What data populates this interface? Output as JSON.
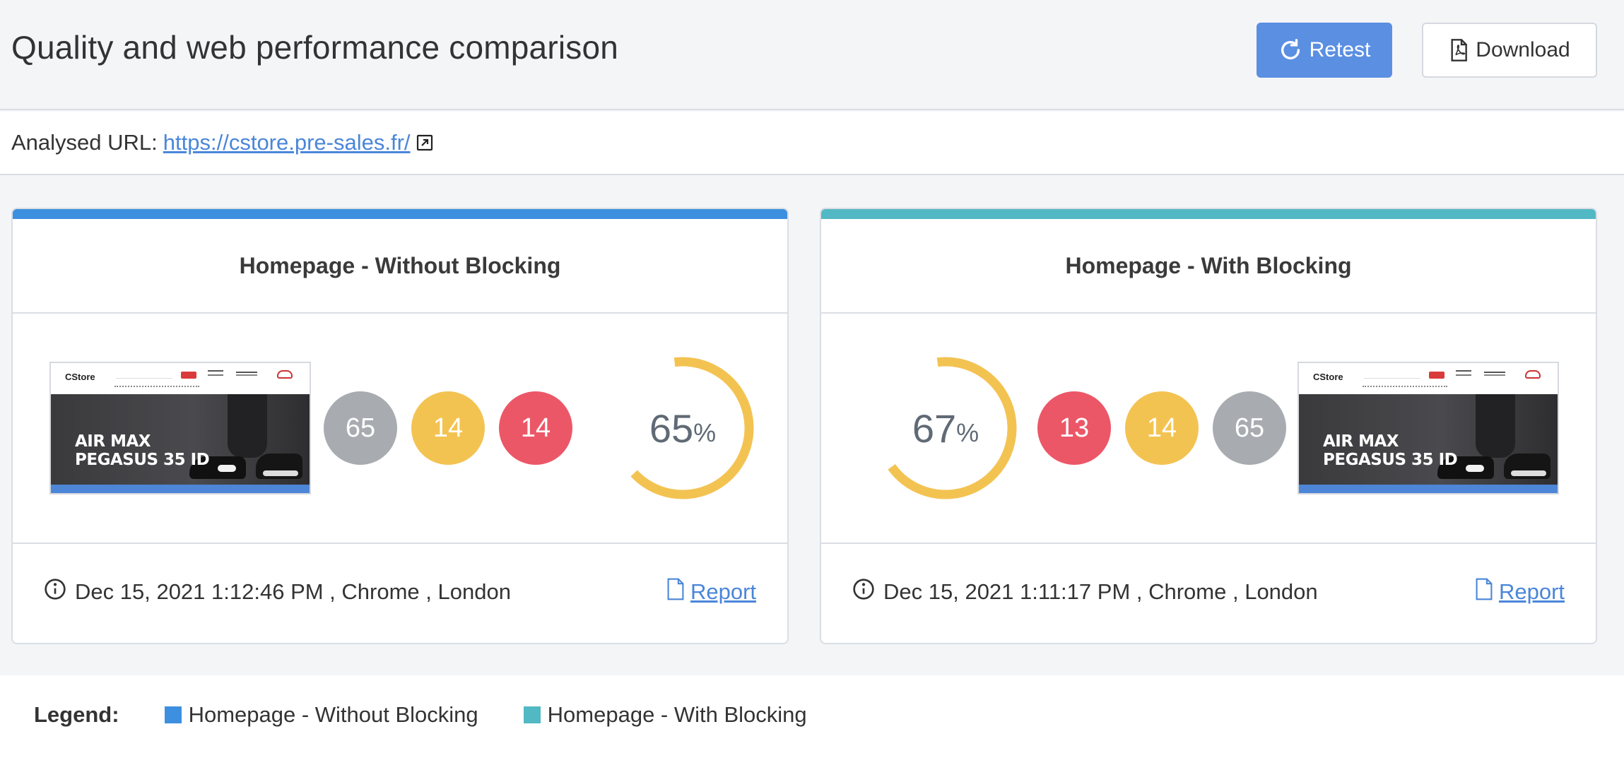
{
  "header": {
    "title": "Quality and web performance comparison",
    "retest_label": "Retest",
    "download_label": "Download"
  },
  "url_bar": {
    "label": "Analysed URL:",
    "url": "https://cstore.pre-sales.fr/"
  },
  "colors": {
    "without_blocking": "#3d8fe0",
    "with_blocking": "#52b8c4",
    "gray_badge": "#a8abb0",
    "yellow_badge": "#f3c352",
    "red_badge": "#ec5768",
    "gauge": "#f3c352",
    "link": "#4a86d9",
    "primary_button": "#5b8fe2"
  },
  "cards": [
    {
      "title": "Homepage - Without Blocking",
      "badges": [
        {
          "value": "65",
          "color": "gray"
        },
        {
          "value": "14",
          "color": "yellow"
        },
        {
          "value": "14",
          "color": "red"
        }
      ],
      "score": "65",
      "score_fraction": 0.65,
      "score_suffix": "%",
      "meta": "Dec 15, 2021 1:12:46 PM , Chrome , London",
      "report_label": "Report",
      "thumbnail": {
        "logo": "CStore",
        "heading_line1": "AIR MAX",
        "heading_line2": "PEGASUS 35 ID"
      }
    },
    {
      "title": "Homepage - With Blocking",
      "badges": [
        {
          "value": "13",
          "color": "red"
        },
        {
          "value": "14",
          "color": "yellow"
        },
        {
          "value": "65",
          "color": "gray"
        }
      ],
      "score": "67",
      "score_fraction": 0.67,
      "score_suffix": "%",
      "meta": "Dec 15, 2021 1:11:17 PM , Chrome , London",
      "report_label": "Report",
      "thumbnail": {
        "logo": "CStore",
        "heading_line1": "AIR MAX",
        "heading_line2": "PEGASUS 35 ID"
      }
    }
  ],
  "legend": {
    "title": "Legend:",
    "items": [
      {
        "label": "Homepage - Without Blocking"
      },
      {
        "label": "Homepage - With Blocking"
      }
    ]
  }
}
